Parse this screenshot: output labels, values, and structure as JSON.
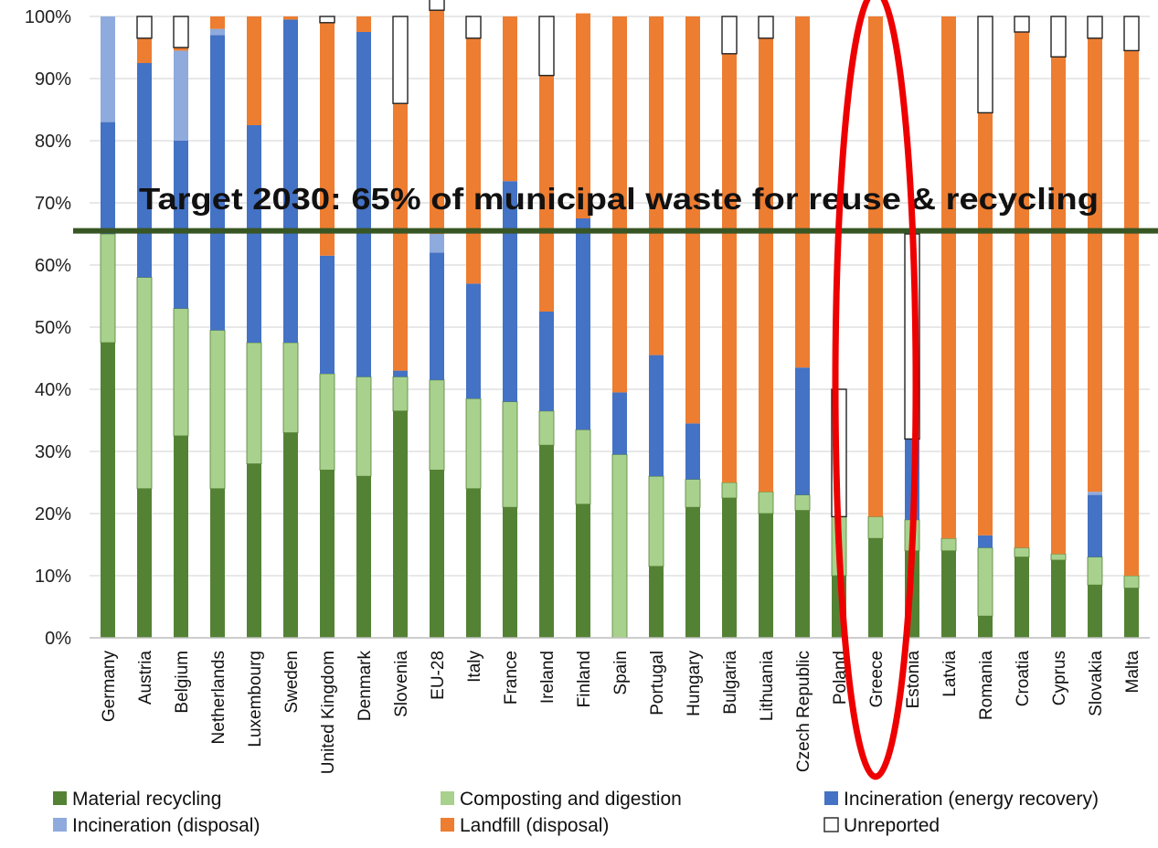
{
  "chart_data": {
    "type": "bar",
    "stacked": true,
    "percent": true,
    "categories": [
      "Germany",
      "Austria",
      "Belgium",
      "Netherlands",
      "Luxembourg",
      "Sweden",
      "United Kingdom",
      "Denmark",
      "Slovenia",
      "EU-28",
      "Italy",
      "France",
      "Ireland",
      "Finland",
      "Spain",
      "Portugal",
      "Hungary",
      "Bulgaria",
      "Lithuania",
      "Czech Republic",
      "Poland",
      "Greece",
      "Estonia",
      "Latvia",
      "Romania",
      "Croatia",
      "Cyprus",
      "Slovakia",
      "Malta"
    ],
    "series": [
      {
        "name": "Material recycling",
        "color": "#548235",
        "values": [
          47.5,
          24,
          32.5,
          24,
          28,
          33,
          27,
          26,
          36.5,
          27,
          24,
          21,
          31,
          21.5,
          0,
          11.5,
          21,
          22.5,
          20,
          20.5,
          10,
          16,
          14,
          14,
          3.5,
          13,
          12.5,
          8.5,
          8
        ]
      },
      {
        "name": "Composting and digestion",
        "color": "#a9d18e",
        "values": [
          17.5,
          34,
          20.5,
          25.5,
          19.5,
          14.5,
          15.5,
          16,
          5.5,
          14.5,
          14.5,
          17,
          5.5,
          12,
          29.5,
          14.5,
          4.5,
          2.5,
          3.5,
          2.5,
          9.5,
          3.5,
          5,
          2,
          11,
          1.5,
          1,
          4.5,
          2
        ]
      },
      {
        "name": "Incineration (energy recovery)",
        "color": "#4472c4",
        "values": [
          18,
          34.5,
          27,
          47.5,
          35,
          52,
          19,
          55.5,
          1,
          20.5,
          18.5,
          35.5,
          16,
          34,
          10,
          19.5,
          9,
          0,
          0,
          20.5,
          0,
          0,
          13,
          0,
          2,
          0,
          0,
          10,
          0
        ]
      },
      {
        "name": "Incineration (disposal)",
        "color": "#8faadc",
        "values": [
          17,
          0,
          14.5,
          1,
          0,
          0,
          0,
          0,
          0,
          3,
          0,
          0,
          0,
          0,
          0,
          0,
          0,
          0,
          0,
          0,
          0,
          0,
          0,
          0,
          0,
          0,
          0,
          0.5,
          0
        ]
      },
      {
        "name": "Landfill (disposal)",
        "color": "#ed7d31",
        "values": [
          0,
          4,
          0.5,
          2,
          17.5,
          0.5,
          37.5,
          2.5,
          43,
          36,
          39.5,
          26.5,
          38,
          33,
          60.5,
          54.5,
          65.5,
          69,
          73,
          56.5,
          0,
          80.5,
          0,
          84,
          68,
          83,
          80,
          73,
          84.5
        ]
      },
      {
        "name": "Unreported",
        "color": "#ffffff",
        "values": [
          0,
          3.5,
          5,
          0,
          0,
          0,
          1,
          0,
          14,
          2.5,
          3.5,
          0,
          9.5,
          0,
          0,
          0,
          0,
          6,
          3.5,
          0,
          20.5,
          0,
          33,
          0,
          15.5,
          2.5,
          6.5,
          3.5,
          5.5
        ]
      }
    ],
    "ylim": [
      0,
      100
    ],
    "yticks": [
      "0%",
      "10%",
      "20%",
      "30%",
      "40%",
      "50%",
      "60%",
      "70%",
      "80%",
      "90%",
      "100%"
    ],
    "grid": true,
    "legend_position": "bottom",
    "legend_columns": 3,
    "annotations": {
      "target_line_value": 65.5,
      "target_line_color": "#375623",
      "target_text": "Target 2030: 65% of municipal waste for reuse & recycling",
      "highlight_category": "Greece",
      "highlight_color": "#ee0000"
    }
  }
}
